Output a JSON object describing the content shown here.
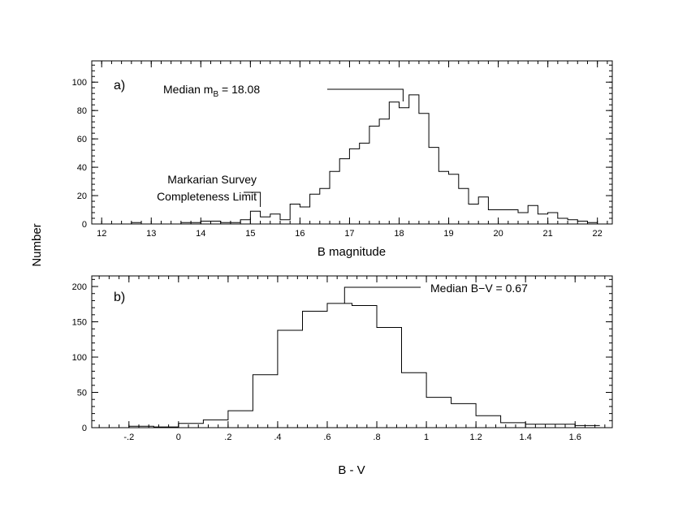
{
  "figure": {
    "ylabel": "Number"
  },
  "chart_data": [
    {
      "type": "bar",
      "panel_label": "a)",
      "xlabel": "B magnitude",
      "ylabel": "Number",
      "xlim": [
        11.8,
        22.3
      ],
      "ylim": [
        0,
        115
      ],
      "xticks": [
        12,
        13,
        14,
        15,
        16,
        17,
        18,
        19,
        20,
        21,
        22
      ],
      "yticks": [
        0,
        20,
        40,
        60,
        80,
        100
      ],
      "bin_start": 11.8,
      "bin_width": 0.2,
      "values": [
        0,
        0,
        0,
        0,
        1,
        0,
        0,
        0,
        0,
        1,
        1,
        2,
        2,
        1,
        1,
        3,
        9,
        5,
        7,
        3,
        14,
        12,
        21,
        25,
        37,
        46,
        53,
        57,
        69,
        74,
        86,
        82,
        91,
        78,
        54,
        37,
        35,
        25,
        14,
        19,
        10,
        10,
        10,
        8,
        13,
        7,
        8,
        4,
        3,
        2,
        1
      ],
      "annotations": [
        {
          "text": "Median m",
          "sub": "B",
          "suffix": " = 18.08",
          "x": 18.08
        },
        {
          "line1": "Markarian Survey",
          "line2": "Completeness Limit",
          "x": 15.2
        }
      ]
    },
    {
      "type": "bar",
      "panel_label": "b)",
      "xlabel": "B - V",
      "ylabel": "Number",
      "xlim": [
        -0.35,
        1.75
      ],
      "ylim": [
        0,
        215
      ],
      "xticks": [
        -0.2,
        0,
        0.2,
        0.4,
        0.6,
        0.8,
        1,
        1.2,
        1.4,
        1.6
      ],
      "xtick_labels": [
        "-.2",
        "0",
        ".2",
        ".4",
        ".6",
        ".8",
        "1",
        "1.2",
        "1.4",
        "1.6"
      ],
      "yticks": [
        0,
        50,
        100,
        150,
        200
      ],
      "bin_start": -0.3,
      "bin_width": 0.1,
      "values": [
        0,
        2,
        1,
        6,
        11,
        24,
        75,
        138,
        165,
        176,
        173,
        142,
        78,
        43,
        34,
        17,
        7,
        5,
        5,
        3
      ],
      "annotations": [
        {
          "text": "Median B−V = 0.67",
          "x": 0.67
        }
      ]
    }
  ]
}
